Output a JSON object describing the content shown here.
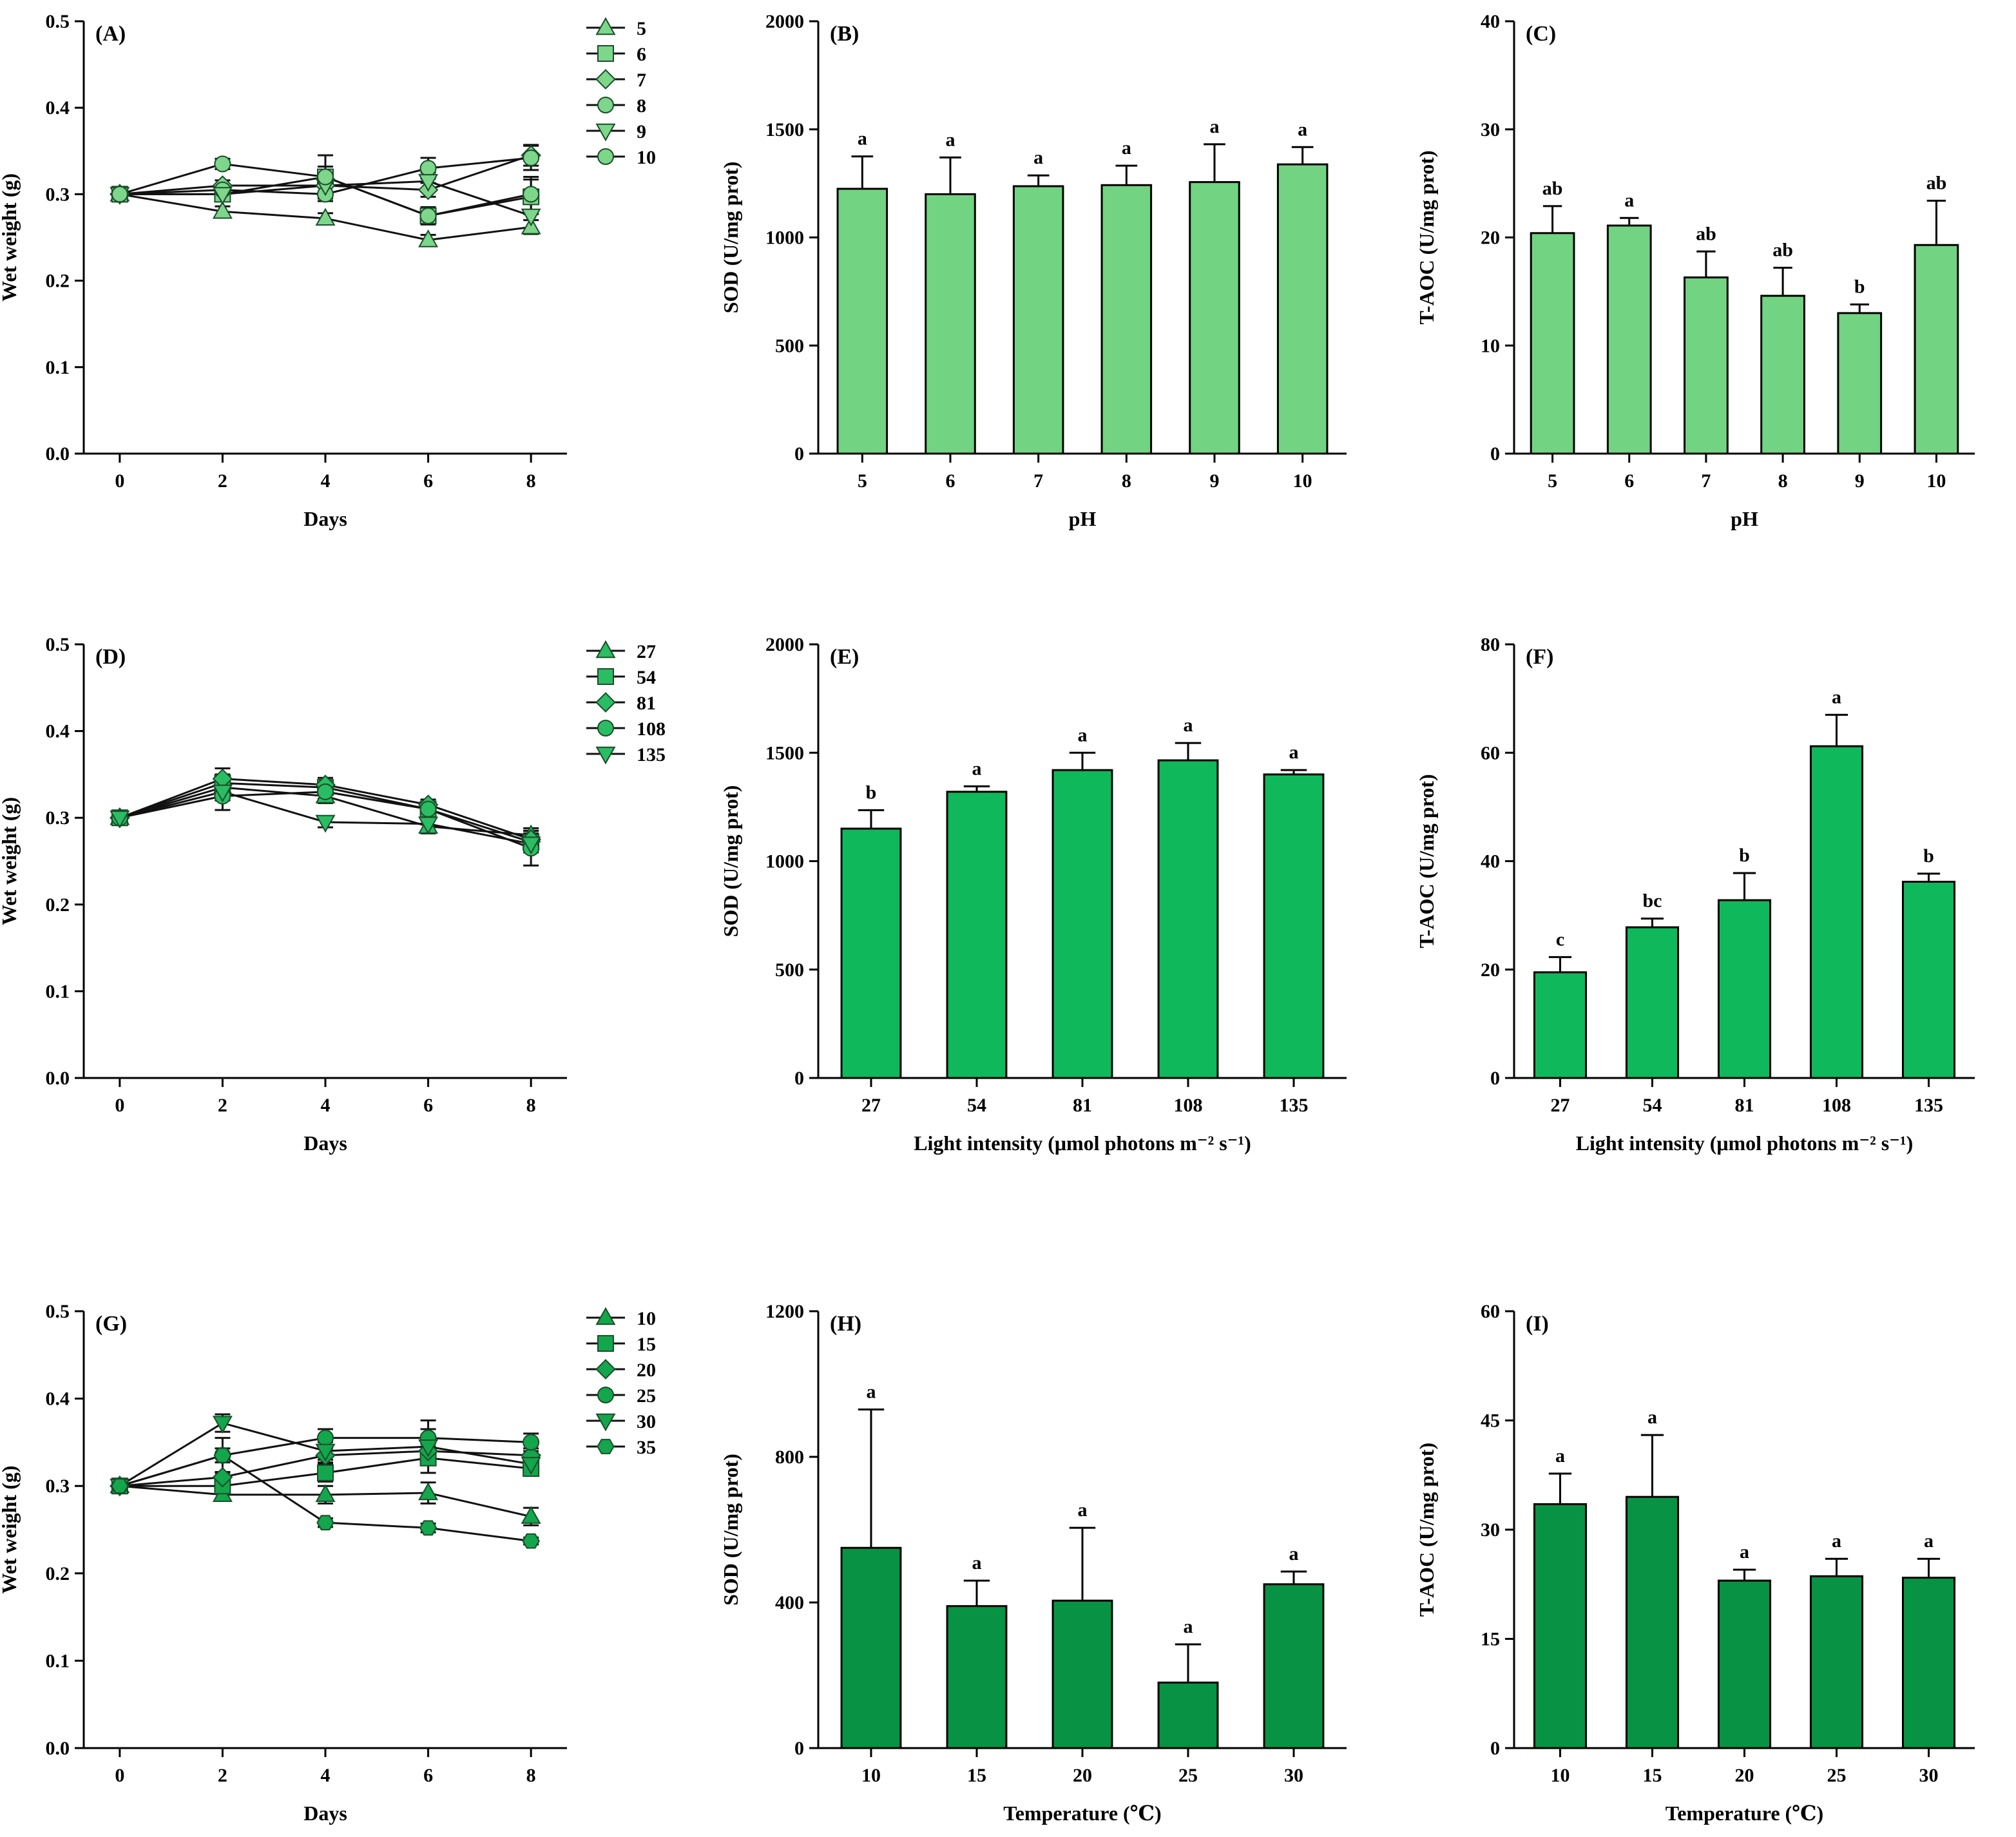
{
  "chart_data": [
    {
      "panel": "(A)",
      "type": "line",
      "xlabel": "Days",
      "ylabel": "Wet weight (g)",
      "x": [
        0,
        2,
        4,
        6,
        8
      ],
      "ylim": [
        0,
        0.5
      ],
      "yticks": [
        "0.0",
        "0.1",
        "0.2",
        "0.3",
        "0.4",
        "0.5"
      ],
      "xticks": [
        "0",
        "2",
        "4",
        "6",
        "8"
      ],
      "color": "#7dd68a",
      "series": [
        {
          "name": "5",
          "marker": "triangle-up",
          "values": [
            0.3,
            0.28,
            0.272,
            0.247,
            0.262
          ],
          "err": [
            0,
            0.006,
            0.006,
            0.006,
            0.008
          ]
        },
        {
          "name": "6",
          "marker": "square",
          "values": [
            0.3,
            0.3,
            0.32,
            0.275,
            0.297
          ],
          "err": [
            0,
            0.006,
            0.012,
            0.008,
            0.02
          ]
        },
        {
          "name": "7",
          "marker": "diamond",
          "values": [
            0.3,
            0.31,
            0.31,
            0.305,
            0.345
          ],
          "err": [
            0,
            0.006,
            0.01,
            0.008,
            0.012
          ]
        },
        {
          "name": "8",
          "marker": "circle",
          "values": [
            0.3,
            0.305,
            0.3,
            0.33,
            0.342
          ],
          "err": [
            0,
            0.006,
            0.008,
            0.012,
            0.014
          ]
        },
        {
          "name": "9",
          "marker": "triangle-down",
          "values": [
            0.3,
            0.3,
            0.31,
            0.315,
            0.275
          ],
          "err": [
            0,
            0.006,
            0.01,
            0.01,
            0.02
          ]
        },
        {
          "name": "10",
          "marker": "circle",
          "values": [
            0.3,
            0.335,
            0.32,
            0.275,
            0.3
          ],
          "err": [
            0,
            0.006,
            0.025,
            0.01,
            0.02
          ]
        }
      ]
    },
    {
      "panel": "(B)",
      "type": "bar",
      "xlabel": "pH",
      "ylabel": "SOD (U/mg prot)",
      "categories": [
        "5",
        "6",
        "7",
        "8",
        "9",
        "10"
      ],
      "ylim": [
        0,
        2000
      ],
      "yticks": [
        "0",
        "500",
        "1000",
        "1500",
        "2000"
      ],
      "values": [
        1225,
        1200,
        1237,
        1242,
        1256,
        1338
      ],
      "err": [
        150,
        170,
        50,
        90,
        175,
        80
      ],
      "letters": [
        "a",
        "a",
        "a",
        "a",
        "a",
        "a"
      ],
      "color": "#72d383"
    },
    {
      "panel": "(C)",
      "type": "bar",
      "xlabel": "pH",
      "ylabel": "T-AOC (U/mg prot)",
      "categories": [
        "5",
        "6",
        "7",
        "8",
        "9",
        "10"
      ],
      "ylim": [
        0,
        40
      ],
      "yticks": [
        "0",
        "10",
        "20",
        "30",
        "40"
      ],
      "values": [
        20.4,
        21.1,
        16.3,
        14.6,
        13.0,
        19.3
      ],
      "err": [
        2.5,
        0.7,
        2.4,
        2.6,
        0.8,
        4.1
      ],
      "letters": [
        "ab",
        "a",
        "ab",
        "ab",
        "b",
        "ab"
      ],
      "color": "#72d383"
    },
    {
      "panel": "(D)",
      "type": "line",
      "xlabel": "Days",
      "ylabel": "Wet weight (g)",
      "x": [
        0,
        2,
        4,
        6,
        8
      ],
      "ylim": [
        0,
        0.5
      ],
      "yticks": [
        "0.0",
        "0.1",
        "0.2",
        "0.3",
        "0.4",
        "0.5"
      ],
      "xticks": [
        "0",
        "2",
        "4",
        "6",
        "8"
      ],
      "color": "#2bbd63",
      "series": [
        {
          "name": "27",
          "marker": "triangle-up",
          "values": [
            0.3,
            0.335,
            0.325,
            0.29,
            0.28
          ],
          "err": [
            0,
            0.01,
            0.008,
            0.008,
            0.008
          ]
        },
        {
          "name": "54",
          "marker": "square",
          "values": [
            0.3,
            0.34,
            0.335,
            0.31,
            0.272
          ],
          "err": [
            0,
            0.01,
            0.008,
            0.008,
            0.01
          ]
        },
        {
          "name": "81",
          "marker": "diamond",
          "values": [
            0.3,
            0.345,
            0.338,
            0.315,
            0.275
          ],
          "err": [
            0,
            0.012,
            0.008,
            0.006,
            0.01
          ]
        },
        {
          "name": "108",
          "marker": "circle",
          "values": [
            0.3,
            0.325,
            0.33,
            0.31,
            0.265
          ],
          "err": [
            0,
            0.016,
            0.008,
            0.008,
            0.02
          ]
        },
        {
          "name": "135",
          "marker": "triangle-down",
          "values": [
            0.3,
            0.33,
            0.295,
            0.293,
            0.27
          ],
          "err": [
            0,
            0.01,
            0.006,
            0.008,
            0.01
          ]
        }
      ]
    },
    {
      "panel": "(E)",
      "type": "bar",
      "xlabel": "Light intensity (μmol photons m⁻² s⁻¹)",
      "ylabel": "SOD (U/mg prot)",
      "categories": [
        "27",
        "54",
        "81",
        "108",
        "135"
      ],
      "ylim": [
        0,
        2000
      ],
      "yticks": [
        "0",
        "500",
        "1000",
        "1500",
        "2000"
      ],
      "values": [
        1150,
        1320,
        1420,
        1465,
        1400
      ],
      "err": [
        85,
        25,
        80,
        80,
        20
      ],
      "letters": [
        "b",
        "a",
        "a",
        "a",
        "a"
      ],
      "color": "#0fb85a"
    },
    {
      "panel": "(F)",
      "type": "bar",
      "xlabel": "Light intensity (μmol photons m⁻² s⁻¹)",
      "ylabel": "T-AOC (U/mg prot)",
      "categories": [
        "27",
        "54",
        "81",
        "108",
        "135"
      ],
      "ylim": [
        0,
        80
      ],
      "yticks": [
        "0",
        "20",
        "40",
        "60",
        "80"
      ],
      "values": [
        19.5,
        27.8,
        32.8,
        61.2,
        36.2
      ],
      "err": [
        2.8,
        1.6,
        5.0,
        5.8,
        1.5
      ],
      "letters": [
        "c",
        "bc",
        "b",
        "a",
        "b"
      ],
      "color": "#0fb85a"
    },
    {
      "panel": "(G)",
      "type": "line",
      "xlabel": "Days",
      "ylabel": "Wet weight (g)",
      "x": [
        0,
        2,
        4,
        6,
        8
      ],
      "ylim": [
        0,
        0.5
      ],
      "yticks": [
        "0.0",
        "0.1",
        "0.2",
        "0.3",
        "0.4",
        "0.5"
      ],
      "xticks": [
        "0",
        "2",
        "4",
        "6",
        "8"
      ],
      "color": "#14a64c",
      "series": [
        {
          "name": "10",
          "marker": "triangle-up",
          "values": [
            0.3,
            0.29,
            0.29,
            0.292,
            0.265
          ],
          "err": [
            0,
            0.006,
            0.01,
            0.012,
            0.01
          ]
        },
        {
          "name": "15",
          "marker": "square",
          "values": [
            0.3,
            0.3,
            0.315,
            0.332,
            0.32
          ],
          "err": [
            0,
            0.006,
            0.01,
            0.008,
            0.008
          ]
        },
        {
          "name": "20",
          "marker": "diamond",
          "values": [
            0.3,
            0.31,
            0.335,
            0.34,
            0.335
          ],
          "err": [
            0,
            0.006,
            0.008,
            0.008,
            0.008
          ]
        },
        {
          "name": "25",
          "marker": "circle",
          "values": [
            0.3,
            0.335,
            0.355,
            0.355,
            0.35
          ],
          "err": [
            0,
            0.008,
            0.01,
            0.01,
            0.01
          ]
        },
        {
          "name": "30",
          "marker": "triangle-down",
          "values": [
            0.3,
            0.372,
            0.34,
            0.345,
            0.325
          ],
          "err": [
            0,
            0.01,
            0.01,
            0.03,
            0.01
          ]
        },
        {
          "name": "35",
          "marker": "hexagon",
          "values": [
            0.3,
            0.335,
            0.258,
            0.252,
            0.237
          ],
          "err": [
            0,
            0.02,
            0.005,
            0.005,
            0.004
          ]
        }
      ]
    },
    {
      "panel": "(H)",
      "type": "bar",
      "xlabel": "Temperature (℃)",
      "ylabel": "SOD (U/mg prot)",
      "categories": [
        "10",
        "15",
        "20",
        "25",
        "30"
      ],
      "ylim": [
        0,
        1200
      ],
      "yticks": [
        "0",
        "400",
        "800",
        "1200"
      ],
      "values": [
        550,
        390,
        405,
        180,
        450
      ],
      "err": [
        380,
        70,
        200,
        105,
        35
      ],
      "letters": [
        "a",
        "a",
        "a",
        "a",
        "a"
      ],
      "color": "#079343"
    },
    {
      "panel": "(I)",
      "type": "bar",
      "xlabel": "Temperature (℃)",
      "ylabel": "T-AOC (U/mg prot)",
      "categories": [
        "10",
        "15",
        "20",
        "25",
        "30"
      ],
      "ylim": [
        0,
        60
      ],
      "yticks": [
        "0",
        "15",
        "30",
        "45",
        "60"
      ],
      "values": [
        33.5,
        34.5,
        23.0,
        23.6,
        23.4
      ],
      "err": [
        4.2,
        8.5,
        1.5,
        2.4,
        2.6
      ],
      "letters": [
        "a",
        "a",
        "a",
        "a",
        "a"
      ],
      "color": "#079343"
    }
  ]
}
